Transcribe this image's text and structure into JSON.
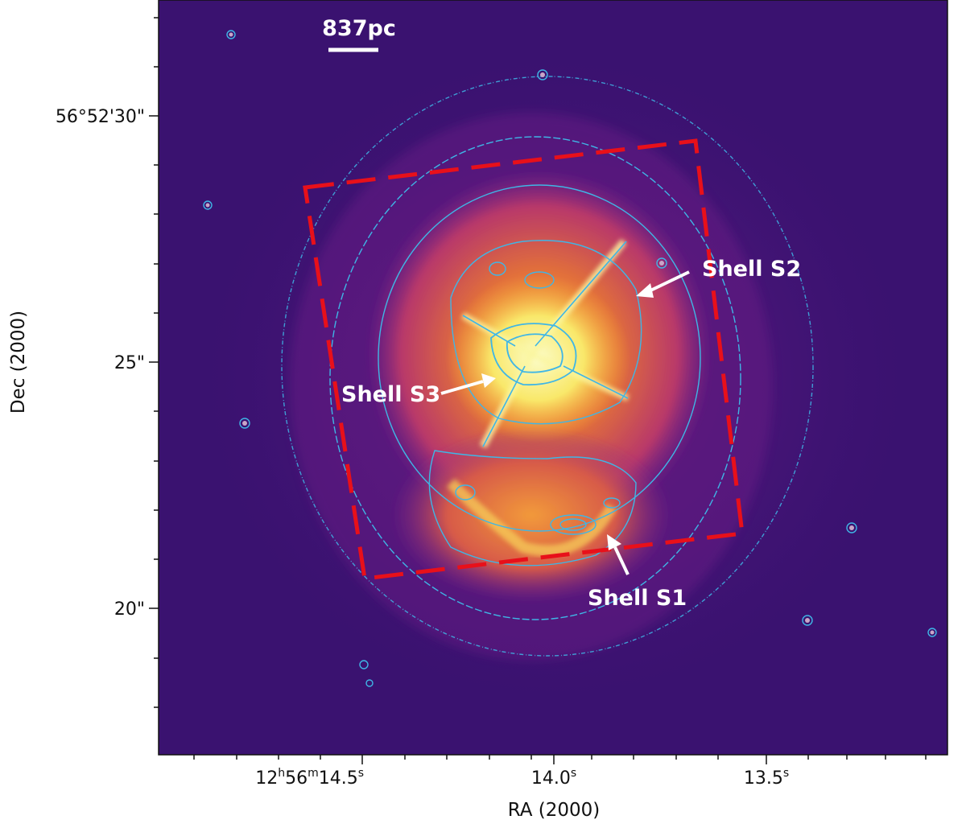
{
  "figure": {
    "scale_bar_label": "837pc",
    "x_axis_label": "RA (2000)",
    "y_axis_label": "Dec (2000)",
    "x_tick_labels": {
      "t1_base": "12",
      "t1_h": "h",
      "t1_m_val": "56",
      "t1_m": "m",
      "t1_s_val": "14.5",
      "t1_s": "s",
      "t2_val": "14.0",
      "t2_s": "s",
      "t3_val": "13.5",
      "t3_s": "s"
    },
    "y_tick_labels": [
      "56°52'30\"",
      "25\"",
      "20\""
    ],
    "annotations": {
      "shell_s1": "Shell S1",
      "shell_s2": "Shell S2",
      "shell_s3": "Shell S3"
    },
    "colors": {
      "background_low": "#3a1270",
      "emission_mid": "#d2503a",
      "emission_high": "#f9a534",
      "core": "#fbfcb8",
      "contours": "#3fb6e6",
      "footprint_box": "#e8101a",
      "annotation": "#ffffff"
    },
    "colormap": "plasma-like"
  }
}
